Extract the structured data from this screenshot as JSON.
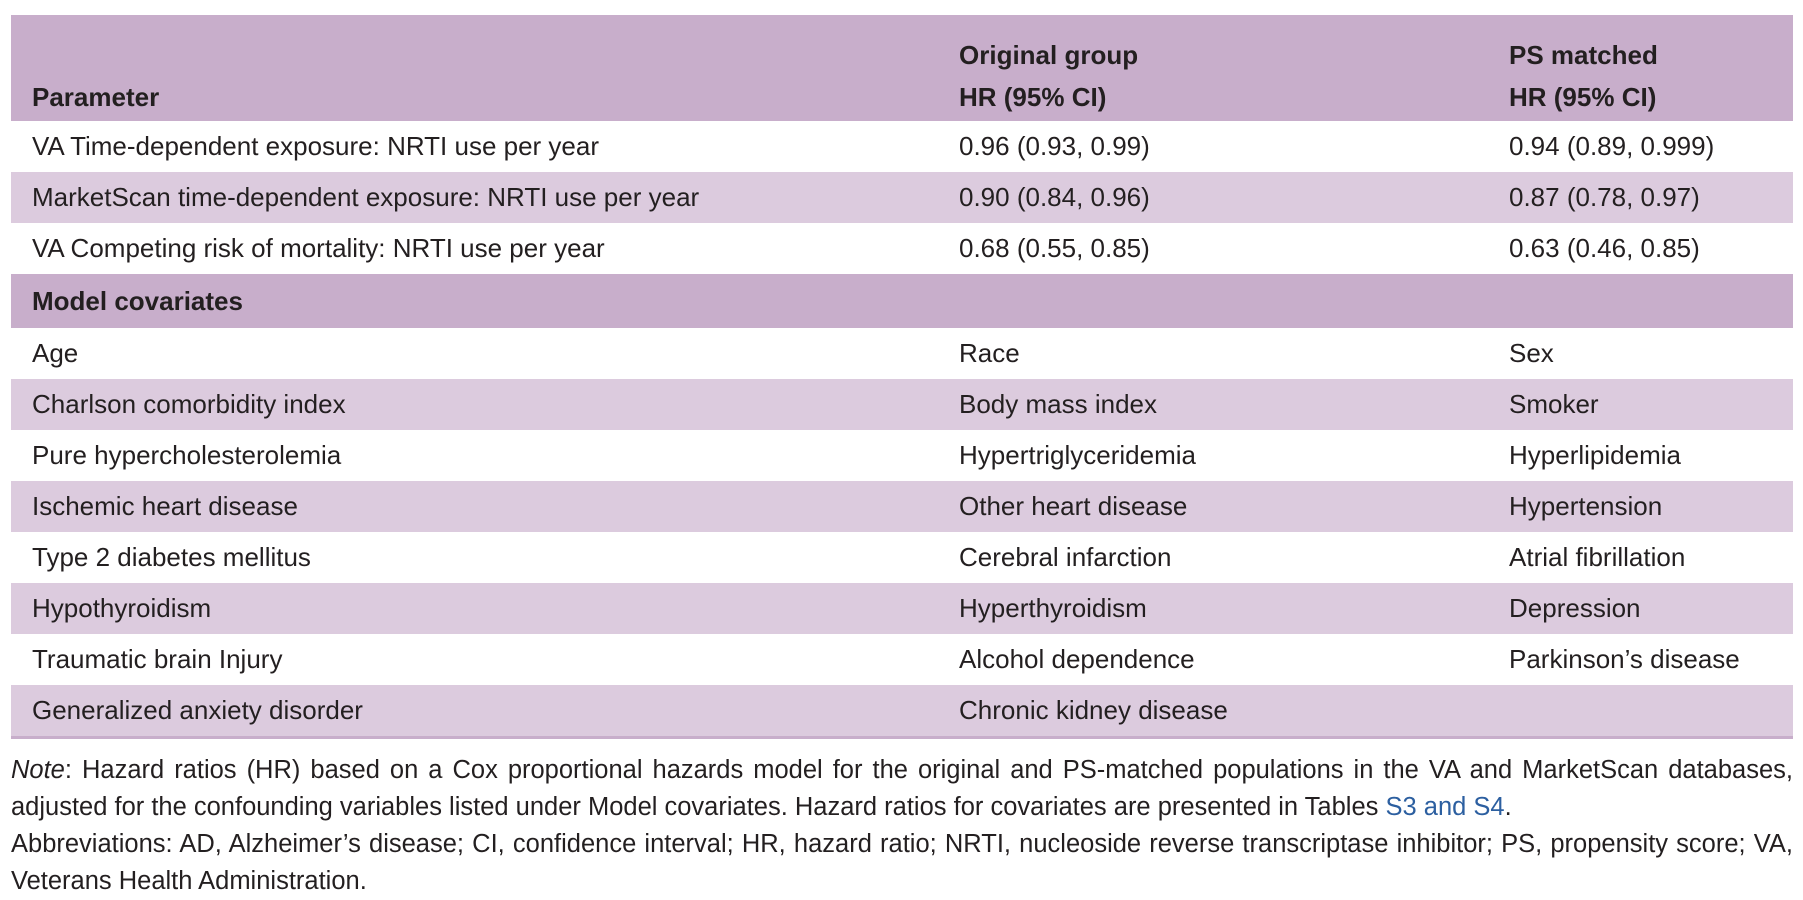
{
  "table": {
    "header": {
      "row1": [
        "",
        "Original group",
        "PS matched"
      ],
      "row2": [
        "Parameter",
        "HR (95% CI)",
        "HR (95% CI)"
      ]
    },
    "results": [
      [
        "VA Time-dependent exposure: NRTI use per year",
        "0.96 (0.93, 0.99)",
        "0.94 (0.89, 0.999)"
      ],
      [
        "MarketScan time-dependent exposure: NRTI use per year",
        "0.90 (0.84, 0.96)",
        "0.87 (0.78, 0.97)"
      ],
      [
        "VA Competing risk of mortality: NRTI use per year",
        "0.68 (0.55, 0.85)",
        "0.63 (0.46, 0.85)"
      ]
    ],
    "section_label": "Model covariates",
    "covariates": [
      [
        "Age",
        "Race",
        "Sex"
      ],
      [
        "Charlson comorbidity index",
        "Body mass index",
        "Smoker"
      ],
      [
        "Pure hypercholesterolemia",
        "Hypertriglyceridemia",
        "Hyperlipidemia"
      ],
      [
        "Ischemic heart disease",
        "Other heart disease",
        "Hypertension"
      ],
      [
        "Type 2 diabetes mellitus",
        "Cerebral infarction",
        "Atrial fibrillation"
      ],
      [
        "Hypothyroidism",
        "Hyperthyroidism",
        "Depression"
      ],
      [
        "Traumatic brain Injury",
        "Alcohol dependence",
        "Parkinson’s disease"
      ],
      [
        "Generalized anxiety disorder",
        "Chronic kidney disease",
        ""
      ]
    ]
  },
  "notes": {
    "note_label": "Note",
    "note_text": ": Hazard ratios (HR) based on a Cox proportional hazards model for the original and PS-matched populations in the VA and MarketScan databases, adjusted for the confounding variables listed under Model covariates. Hazard ratios for covariates are presented in Tables ",
    "note_link": "S3 and S4",
    "note_end": ".",
    "abbreviations": "Abbreviations: AD, Alzheimer’s disease; CI, confidence interval; HR, hazard ratio; NRTI, nucleoside reverse transcriptase inhibitor; PS, propensity score; VA, Veterans Health Administration."
  }
}
